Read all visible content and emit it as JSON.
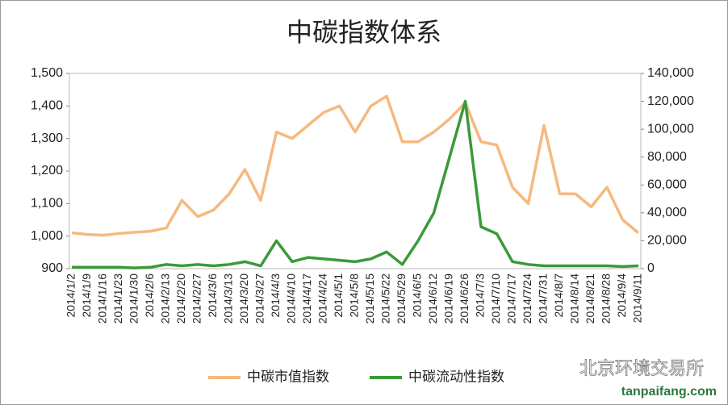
{
  "chart_data": {
    "type": "line",
    "title": "中碳指数体系",
    "categories": [
      "2014/1/2",
      "2014/1/9",
      "2014/1/16",
      "2014/1/23",
      "2014/1/30",
      "2014/2/6",
      "2014/2/13",
      "2014/2/20",
      "2014/2/27",
      "2014/3/6",
      "2014/3/13",
      "2014/3/20",
      "2014/3/27",
      "2014/4/3",
      "2014/4/10",
      "2014/4/17",
      "2014/4/24",
      "2014/5/1",
      "2014/5/8",
      "2014/5/15",
      "2014/5/22",
      "2014/5/29",
      "2014/6/5",
      "2014/6/12",
      "2014/6/19",
      "2014/6/26",
      "2014/7/3",
      "2014/7/10",
      "2014/7/17",
      "2014/7/24",
      "2014/7/31",
      "2014/8/7",
      "2014/8/14",
      "2014/8/21",
      "2014/8/28",
      "2014/9/4",
      "2014/9/11"
    ],
    "series": [
      {
        "name": "中碳市值指数",
        "color": "#f5b97e",
        "values": [
          1010,
          1005,
          1003,
          1008,
          1012,
          1015,
          1025,
          1110,
          1060,
          1080,
          1130,
          1205,
          1110,
          1320,
          1300,
          1340,
          1380,
          1400,
          1320,
          1400,
          1430,
          1290,
          1290,
          1320,
          1360,
          1410,
          1290,
          1280,
          1150,
          1100,
          1340,
          1130,
          1130,
          1090,
          1150,
          1050,
          1010
        ]
      },
      {
        "name": "中碳流动性指数",
        "color": "#3a9a3a",
        "axis": "y2",
        "values": [
          1000,
          1000,
          1000,
          1000,
          500,
          1000,
          3000,
          2000,
          3000,
          2000,
          3000,
          5000,
          2000,
          20000,
          5000,
          8000,
          7000,
          6000,
          5000,
          7000,
          12000,
          3000,
          20000,
          40000,
          80000,
          120000,
          30000,
          25000,
          5000,
          3000,
          2000,
          2000,
          2000,
          2000,
          2000,
          1500,
          2000
        ]
      }
    ],
    "ylim": [
      900,
      1500
    ],
    "yticks": [
      900,
      {
        "value": 1000,
        "label": "1,000"
      },
      {
        "value": 1100,
        "label": "1,100"
      },
      {
        "value": 1200,
        "label": "1,200"
      },
      {
        "value": 1300,
        "label": "1,300"
      },
      {
        "value": 1400,
        "label": "1,400"
      },
      {
        "value": 1500,
        "label": "1,500"
      }
    ],
    "y2lim": [
      0,
      140000
    ],
    "y2ticks": [
      0,
      {
        "value": 20000,
        "label": "20,000"
      },
      {
        "value": 40000,
        "label": "40,000"
      },
      {
        "value": 60000,
        "label": "60,000"
      },
      {
        "value": 80000,
        "label": "80,000"
      },
      {
        "value": 100000,
        "label": "100,000"
      },
      {
        "value": 120000,
        "label": "120,000"
      },
      {
        "value": 140000,
        "label": "140,000"
      }
    ],
    "legend": "bottom",
    "watermark": [
      "北京环境交易所",
      "tanpaifang.com"
    ]
  }
}
